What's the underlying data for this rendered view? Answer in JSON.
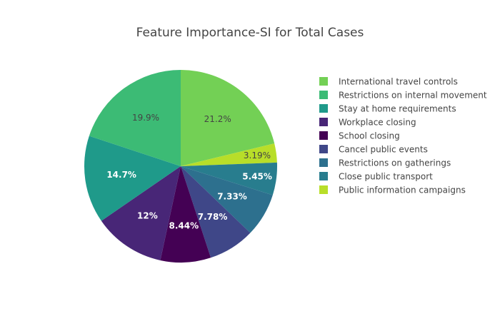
{
  "chart_data": {
    "type": "pie",
    "title": "Feature Importance-SI for Total Cases",
    "legend_position": "right",
    "slices": [
      {
        "label": "International travel controls",
        "value": 21.2,
        "text": "21.2%",
        "color": "#73d055",
        "label_color": "#444444"
      },
      {
        "label": "Public information campaigns",
        "value": 3.19,
        "text": "3.19%",
        "color": "#b8de29",
        "label_color": "#444444"
      },
      {
        "label": "Close public transport",
        "value": 5.45,
        "text": "5.45%",
        "color": "#287d8e",
        "label_color": "#ffffff"
      },
      {
        "label": "Restrictions on gatherings",
        "value": 7.33,
        "text": "7.33%",
        "color": "#2d708e",
        "label_color": "#ffffff"
      },
      {
        "label": "Cancel public events",
        "value": 7.78,
        "text": "7.78%",
        "color": "#3f4788",
        "label_color": "#ffffff"
      },
      {
        "label": "School closing",
        "value": 8.44,
        "text": "8.44%",
        "color": "#440154",
        "label_color": "#ffffff"
      },
      {
        "label": "Workplace closing",
        "value": 12.0,
        "text": "12%",
        "color": "#482677",
        "label_color": "#ffffff"
      },
      {
        "label": "Stay at home requirements",
        "value": 14.7,
        "text": "14.7%",
        "color": "#1f9a8a",
        "label_color": "#ffffff"
      },
      {
        "label": "Restrictions on internal movement",
        "value": 19.9,
        "text": "19.9%",
        "color": "#3cbb75",
        "label_color": "#444444"
      }
    ],
    "legend": [
      {
        "label": "International travel controls",
        "color": "#73d055"
      },
      {
        "label": "Restrictions on internal movement",
        "color": "#3cbb75"
      },
      {
        "label": "Stay at home requirements",
        "color": "#1f9a8a"
      },
      {
        "label": "Workplace closing",
        "color": "#482677"
      },
      {
        "label": "School closing",
        "color": "#440154"
      },
      {
        "label": "Cancel public events",
        "color": "#3f4788"
      },
      {
        "label": "Restrictions on gatherings",
        "color": "#2d708e"
      },
      {
        "label": "Close public transport",
        "color": "#287d8e"
      },
      {
        "label": "Public information campaigns",
        "color": "#b8de29"
      }
    ]
  }
}
